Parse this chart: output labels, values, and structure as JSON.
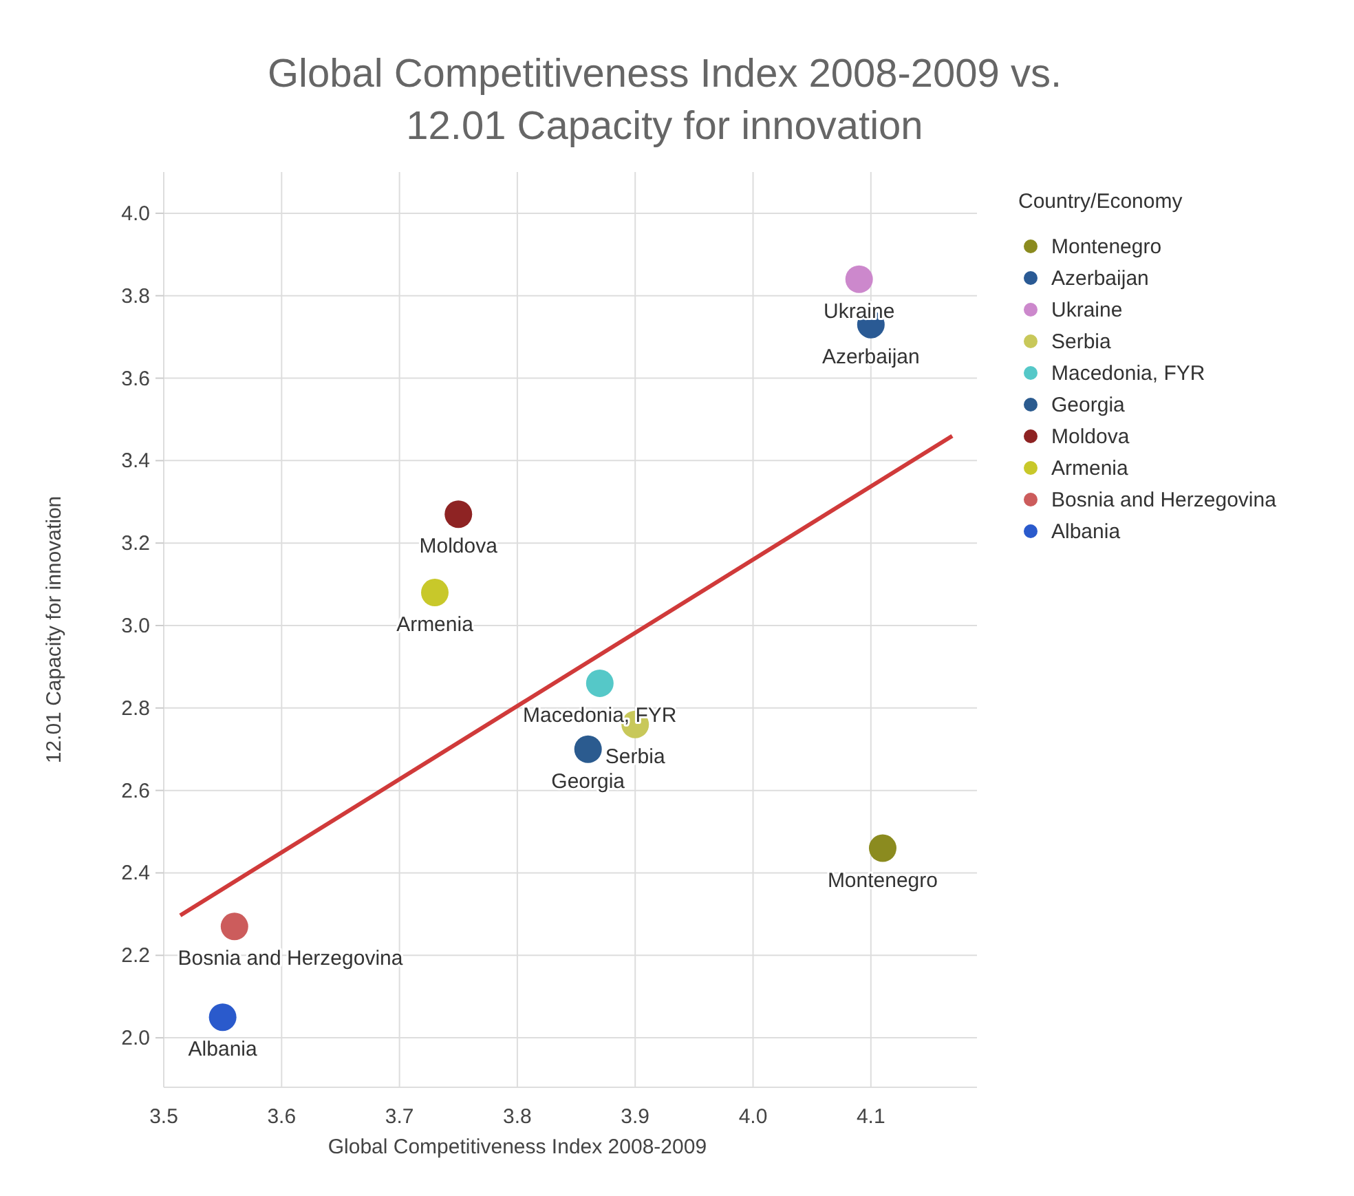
{
  "chart_data": {
    "type": "scatter",
    "title": "Global Competitiveness Index 2008-2009 vs. 12.01 Capacity for innovation",
    "xlabel": "Global Competitiveness Index 2008-2009",
    "ylabel": "12.01 Capacity for innovation",
    "legend_title": "Country/Economy",
    "legend": "right",
    "grid": true,
    "marker": "circle",
    "xlim": [
      3.5,
      4.19
    ],
    "ylim": [
      1.88,
      4.1
    ],
    "xticks": [
      3.5,
      3.6,
      3.7,
      3.8,
      3.9,
      {
        "value": 4,
        "label": "4.0"
      },
      4.1
    ],
    "yticks": [
      {
        "value": 2,
        "label": "2.0"
      },
      2.2,
      2.4,
      2.6,
      2.8,
      {
        "value": 3,
        "label": "3.0"
      },
      3.2,
      3.4,
      3.6,
      3.8,
      {
        "value": 4,
        "label": "4.0"
      }
    ],
    "series": [
      {
        "name": "Montenegro",
        "color": "#8b8b1f",
        "x": [
          4.11
        ],
        "values": [
          2.46
        ]
      },
      {
        "name": "Azerbaijan",
        "color": "#2a5a94",
        "x": [
          4.1
        ],
        "values": [
          3.73
        ]
      },
      {
        "name": "Ukraine",
        "color": "#cc88cc",
        "x": [
          4.09
        ],
        "values": [
          3.84
        ]
      },
      {
        "name": "Serbia",
        "color": "#c8c85a",
        "x": [
          3.9
        ],
        "values": [
          2.76
        ]
      },
      {
        "name": "Macedonia, FYR",
        "color": "#55c8c8",
        "x": [
          3.87
        ],
        "values": [
          2.86
        ]
      },
      {
        "name": "Georgia",
        "color": "#2b5b8f",
        "x": [
          3.86
        ],
        "values": [
          2.7
        ]
      },
      {
        "name": "Moldova",
        "color": "#8e2323",
        "x": [
          3.75
        ],
        "values": [
          3.27
        ]
      },
      {
        "name": "Armenia",
        "color": "#c8c82a",
        "x": [
          3.73
        ],
        "values": [
          3.08
        ]
      },
      {
        "name": "Bosnia and Herzegovina",
        "color": "#cc5c5c",
        "x": [
          3.56
        ],
        "values": [
          2.27
        ]
      },
      {
        "name": "Albania",
        "color": "#2a5acc",
        "x": [
          3.55
        ],
        "values": [
          2.05
        ]
      },
      {
        "type": "line",
        "marker": "none",
        "color": "#d03a3a",
        "x": [
          3.514,
          4.169
        ],
        "values": [
          2.297,
          3.46
        ]
      }
    ]
  }
}
